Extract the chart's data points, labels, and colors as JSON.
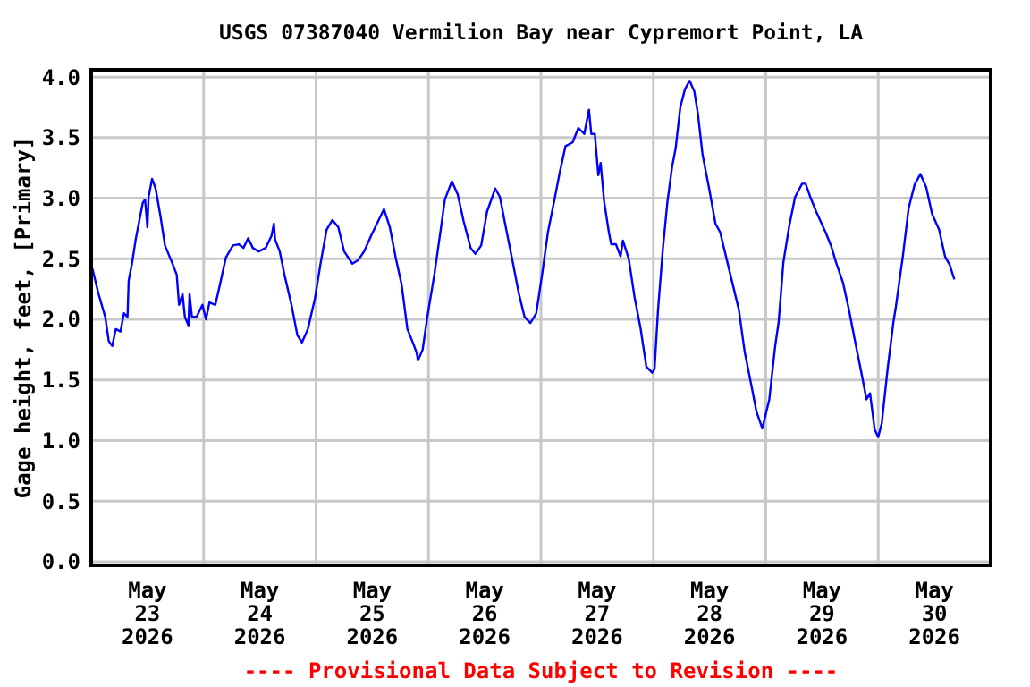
{
  "chart_data": {
    "type": "line",
    "title": "USGS 07387040 Vermilion Bay near Cypremort Point, LA",
    "ylabel": "Gage height, feet, [Primary]",
    "annotations": [
      "---- Provisional Data Subject to Revision ----"
    ],
    "series": [
      {
        "color": "#0000ff",
        "x": [
          "2026-05-23T00:15",
          "2026-05-23T01:30",
          "2026-05-23T03:00",
          "2026-05-23T03:45",
          "2026-05-23T04:30",
          "2026-05-23T05:15",
          "2026-05-23T06:15",
          "2026-05-23T07:00",
          "2026-05-23T07:45",
          "2026-05-23T08:00",
          "2026-05-23T08:45",
          "2026-05-23T09:30",
          "2026-05-23T10:15",
          "2026-05-23T11:00",
          "2026-05-23T11:30",
          "2026-05-23T12:00",
          "2026-05-23T12:15",
          "2026-05-23T13:00",
          "2026-05-23T13:45",
          "2026-05-23T14:45",
          "2026-05-23T15:45",
          "2026-05-23T17:15",
          "2026-05-23T18:15",
          "2026-05-23T18:45",
          "2026-05-23T19:30",
          "2026-05-23T20:00",
          "2026-05-23T20:45",
          "2026-05-23T21:00",
          "2026-05-23T21:30",
          "2026-05-23T22:30",
          "2026-05-23T23:45",
          "2026-05-24T00:30",
          "2026-05-24T01:15",
          "2026-05-24T02:30",
          "2026-05-24T03:30",
          "2026-05-24T04:45",
          "2026-05-24T06:15",
          "2026-05-24T07:30",
          "2026-05-24T08:30",
          "2026-05-24T09:30",
          "2026-05-24T10:30",
          "2026-05-24T11:45",
          "2026-05-24T13:15",
          "2026-05-24T14:30",
          "2026-05-24T15:00",
          "2026-05-24T15:15",
          "2026-05-24T16:15",
          "2026-05-24T17:15",
          "2026-05-24T18:45",
          "2026-05-24T20:00",
          "2026-05-24T21:00",
          "2026-05-24T22:15",
          "2026-05-24T23:45",
          "2026-05-25T01:00",
          "2026-05-25T02:15",
          "2026-05-25T03:30",
          "2026-05-25T04:45",
          "2026-05-25T06:00",
          "2026-05-25T07:45",
          "2026-05-25T09:00",
          "2026-05-25T10:15",
          "2026-05-25T11:45",
          "2026-05-25T13:00",
          "2026-05-25T14:30",
          "2026-05-25T15:45",
          "2026-05-25T17:00",
          "2026-05-25T18:15",
          "2026-05-25T19:30",
          "2026-05-25T20:45",
          "2026-05-25T21:30",
          "2026-05-25T21:45",
          "2026-05-25T22:45",
          "2026-05-25T23:45",
          "2026-05-26T01:15",
          "2026-05-26T02:30",
          "2026-05-26T03:30",
          "2026-05-26T05:00",
          "2026-05-26T06:15",
          "2026-05-26T07:30",
          "2026-05-26T09:00",
          "2026-05-26T10:00",
          "2026-05-26T11:15",
          "2026-05-26T12:30",
          "2026-05-26T14:15",
          "2026-05-26T15:15",
          "2026-05-26T16:30",
          "2026-05-26T18:00",
          "2026-05-26T19:15",
          "2026-05-26T20:30",
          "2026-05-26T21:45",
          "2026-05-26T23:00",
          "2026-05-27T00:15",
          "2026-05-27T01:30",
          "2026-05-27T03:00",
          "2026-05-27T04:00",
          "2026-05-27T05:15",
          "2026-05-27T06:45",
          "2026-05-27T08:00",
          "2026-05-27T09:15",
          "2026-05-27T09:45",
          "2026-05-27T10:15",
          "2026-05-27T10:45",
          "2026-05-27T11:30",
          "2026-05-27T12:15",
          "2026-05-27T12:45",
          "2026-05-27T13:30",
          "2026-05-27T14:30",
          "2026-05-27T15:00",
          "2026-05-27T16:00",
          "2026-05-27T17:00",
          "2026-05-27T17:30",
          "2026-05-27T18:45",
          "2026-05-27T20:00",
          "2026-05-27T21:15",
          "2026-05-27T22:30",
          "2026-05-27T23:45",
          "2026-05-28T00:15",
          "2026-05-28T01:00",
          "2026-05-28T02:00",
          "2026-05-28T03:00",
          "2026-05-28T04:00",
          "2026-05-28T04:45",
          "2026-05-28T05:45",
          "2026-05-28T06:45",
          "2026-05-28T07:45",
          "2026-05-28T08:45",
          "2026-05-28T09:30",
          "2026-05-28T10:30",
          "2026-05-28T12:00",
          "2026-05-28T13:15",
          "2026-05-28T14:15",
          "2026-05-28T15:30",
          "2026-05-28T17:00",
          "2026-05-28T18:15",
          "2026-05-28T19:30",
          "2026-05-28T21:00",
          "2026-05-28T21:45",
          "2026-05-28T22:00",
          "2026-05-28T23:15",
          "2026-05-29T00:45",
          "2026-05-29T02:00",
          "2026-05-29T02:45",
          "2026-05-29T03:45",
          "2026-05-29T05:00",
          "2026-05-29T06:15",
          "2026-05-29T07:45",
          "2026-05-29T08:30",
          "2026-05-29T09:30",
          "2026-05-29T10:45",
          "2026-05-29T12:45",
          "2026-05-29T14:00",
          "2026-05-29T15:00",
          "2026-05-29T16:30",
          "2026-05-29T17:45",
          "2026-05-29T19:00",
          "2026-05-29T20:30",
          "2026-05-29T21:30",
          "2026-05-29T22:15",
          "2026-05-29T23:15",
          "2026-05-30T00:00",
          "2026-05-30T00:45",
          "2026-05-30T02:00",
          "2026-05-30T03:15",
          "2026-05-30T03:45",
          "2026-05-30T05:15",
          "2026-05-30T06:30",
          "2026-05-30T07:45",
          "2026-05-30T09:00",
          "2026-05-30T10:15",
          "2026-05-30T11:30",
          "2026-05-30T13:00",
          "2026-05-30T14:15",
          "2026-05-30T15:15",
          "2026-05-30T16:15"
        ],
        "values": [
          2.42,
          2.22,
          2.02,
          1.82,
          1.78,
          1.92,
          1.9,
          2.05,
          2.02,
          2.32,
          2.47,
          2.66,
          2.81,
          2.96,
          2.99,
          2.76,
          3.01,
          3.16,
          3.08,
          2.86,
          2.61,
          2.47,
          2.37,
          2.12,
          2.21,
          2.02,
          1.95,
          2.21,
          2.02,
          2.02,
          2.12,
          2.0,
          2.14,
          2.12,
          2.29,
          2.51,
          2.61,
          2.62,
          2.59,
          2.67,
          2.59,
          2.56,
          2.59,
          2.69,
          2.79,
          2.66,
          2.56,
          2.37,
          2.12,
          1.87,
          1.81,
          1.92,
          2.17,
          2.47,
          2.74,
          2.82,
          2.76,
          2.56,
          2.46,
          2.49,
          2.56,
          2.69,
          2.79,
          2.91,
          2.76,
          2.51,
          2.29,
          1.92,
          1.8,
          1.72,
          1.66,
          1.75,
          2.02,
          2.37,
          2.71,
          2.99,
          3.14,
          3.03,
          2.81,
          2.59,
          2.54,
          2.61,
          2.89,
          3.08,
          3.01,
          2.76,
          2.47,
          2.22,
          2.02,
          1.97,
          2.05,
          2.37,
          2.72,
          3.01,
          3.21,
          3.43,
          3.46,
          3.58,
          3.53,
          3.63,
          3.73,
          3.53,
          3.53,
          3.19,
          3.29,
          2.97,
          2.72,
          2.62,
          2.62,
          2.52,
          2.65,
          2.5,
          2.18,
          1.93,
          1.61,
          1.56,
          1.59,
          2.08,
          2.57,
          2.97,
          3.26,
          3.41,
          3.75,
          3.9,
          3.97,
          3.88,
          3.7,
          3.36,
          3.06,
          2.79,
          2.72,
          2.52,
          2.28,
          2.08,
          1.73,
          1.44,
          1.29,
          1.24,
          1.1,
          1.34,
          1.78,
          1.98,
          2.47,
          2.77,
          3.01,
          3.12,
          3.12,
          3.01,
          2.89,
          2.72,
          2.6,
          2.47,
          2.3,
          2.08,
          1.83,
          1.54,
          1.34,
          1.39,
          1.09,
          1.03,
          1.14,
          1.59,
          1.98,
          2.1,
          2.52,
          2.92,
          3.11,
          3.2,
          3.09,
          2.87,
          2.74,
          2.52,
          2.45,
          2.33
        ]
      }
    ],
    "xlim": [
      "2026-05-23",
      "2026-05-31"
    ],
    "xticks": [
      {
        "value": "2026-05-23T12:00",
        "label": "May\n23\n2026"
      },
      {
        "value": "2026-05-24T12:00",
        "label": "May\n24\n2026"
      },
      {
        "value": "2026-05-25T12:00",
        "label": "May\n25\n2026"
      },
      {
        "value": "2026-05-26T12:00",
        "label": "May\n26\n2026"
      },
      {
        "value": "2026-05-27T12:00",
        "label": "May\n27\n2026"
      },
      {
        "value": "2026-05-28T12:00",
        "label": "May\n28\n2026"
      },
      {
        "value": "2026-05-29T12:00",
        "label": "May\n29\n2026"
      },
      {
        "value": "2026-05-30T12:00",
        "label": "May\n30\n2026"
      },
      {
        "value": "2026-05-24",
        "label": null
      },
      {
        "value": "2026-05-25",
        "label": null
      },
      {
        "value": "2026-05-26",
        "label": null
      },
      {
        "value": "2026-05-27",
        "label": null
      },
      {
        "value": "2026-05-28",
        "label": null
      },
      {
        "value": "2026-05-29",
        "label": null
      },
      {
        "value": "2026-05-30",
        "label": null
      }
    ],
    "ylim": [
      -0.03,
      4.06
    ],
    "yticks": [
      {
        "value": 0,
        "label": "0.0"
      },
      {
        "value": 0.5,
        "label": "0.5"
      },
      {
        "value": 1,
        "label": "1.0"
      },
      {
        "value": 1.5,
        "label": "1.5"
      },
      {
        "value": 2,
        "label": "2.0"
      },
      {
        "value": 2.5,
        "label": "2.5"
      },
      {
        "value": 3,
        "label": "3.0"
      },
      {
        "value": 3.5,
        "label": "3.5"
      },
      {
        "value": 4,
        "label": "4.0"
      }
    ],
    "grid": true,
    "marker": "none",
    "line_style": "solid"
  }
}
